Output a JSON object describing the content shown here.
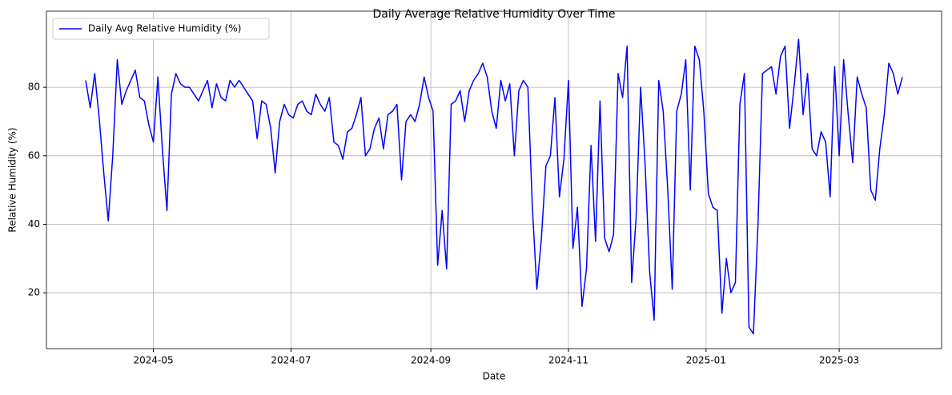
{
  "chart_data": {
    "type": "line",
    "title": "Daily Average Relative Humidity Over Time",
    "x_label": "Date",
    "y_label": "Relative Humidity (%)",
    "x": [
      0,
      2,
      4,
      6,
      8,
      10,
      12,
      14,
      16,
      18,
      20,
      22,
      24,
      26,
      28,
      30,
      32,
      34,
      36,
      38,
      40,
      42,
      44,
      46,
      48,
      50,
      52,
      54,
      56,
      58,
      60,
      62,
      64,
      66,
      68,
      70,
      72,
      74,
      76,
      78,
      80,
      82,
      84,
      86,
      88,
      90,
      92,
      94,
      96,
      98,
      100,
      102,
      104,
      106,
      108,
      110,
      112,
      114,
      116,
      118,
      120,
      122,
      124,
      126,
      128,
      130,
      132,
      134,
      136,
      138,
      140,
      142,
      144,
      146,
      148,
      150,
      152,
      154,
      156,
      158,
      160,
      162,
      164,
      166,
      168,
      170,
      172,
      174,
      176,
      178,
      180,
      182,
      184,
      186,
      188,
      190,
      192,
      194,
      196,
      198,
      200,
      202,
      204,
      206,
      208,
      210,
      212,
      214,
      216,
      218,
      220,
      222,
      224,
      226,
      228,
      230,
      232,
      234,
      236,
      238,
      240,
      242,
      244,
      246,
      248,
      250,
      252,
      254,
      256,
      258,
      260,
      262,
      264,
      266,
      268,
      270,
      272,
      274,
      276,
      278,
      280,
      282,
      284,
      286,
      288,
      290,
      292,
      294,
      296,
      298,
      300,
      302,
      304,
      306,
      308,
      310,
      312,
      314,
      316,
      318,
      320,
      322,
      324,
      326,
      328,
      330,
      332,
      334,
      336,
      338,
      340,
      342,
      344,
      346,
      348,
      350,
      352,
      354,
      356,
      358,
      360,
      362
    ],
    "series": [
      {
        "name": "Daily Avg Relative Humidity (%)",
        "color": "#0000ff",
        "values": [
          82,
          74,
          84,
          71,
          55,
          41,
          60,
          88,
          75,
          79,
          82,
          85,
          77,
          76,
          69,
          64,
          83,
          62,
          44,
          78,
          84,
          81,
          80,
          80,
          78,
          76,
          79,
          82,
          74,
          81,
          77,
          76,
          82,
          80,
          82,
          80,
          78,
          76,
          65,
          76,
          75,
          68,
          55,
          70,
          75,
          72,
          71,
          75,
          76,
          73,
          72,
          78,
          75,
          73,
          77,
          64,
          63,
          59,
          67,
          68,
          72,
          77,
          60,
          62,
          68,
          71,
          62,
          72,
          73,
          75,
          53,
          70,
          72,
          70,
          75,
          83,
          77,
          73,
          28,
          44,
          27,
          75,
          76,
          79,
          70,
          79,
          82,
          84,
          87,
          83,
          73,
          68,
          82,
          76,
          81,
          60,
          79,
          82,
          80,
          45,
          21,
          36,
          57,
          60,
          77,
          48,
          59,
          82,
          33,
          45,
          16,
          27,
          63,
          35,
          76,
          36,
          32,
          37,
          84,
          77,
          92,
          23,
          42,
          80,
          57,
          26,
          12,
          82,
          73,
          50,
          21,
          73,
          78,
          88,
          50,
          92,
          88,
          73,
          49,
          45,
          44,
          14,
          30,
          20,
          23,
          75,
          84,
          10,
          8,
          40,
          84,
          85,
          86,
          78,
          89,
          92,
          68,
          80,
          94,
          72,
          84,
          62,
          60,
          67,
          64,
          48,
          86,
          60,
          88,
          72,
          58,
          83,
          78,
          74,
          50,
          47,
          62,
          72,
          87,
          84,
          78,
          83
        ]
      }
    ],
    "xlim": [
      -17.4,
      379.4
    ],
    "xticks": [
      {
        "value": 30,
        "label": "2024-05"
      },
      {
        "value": 91,
        "label": "2024-07"
      },
      {
        "value": 153,
        "label": "2024-09"
      },
      {
        "value": 214,
        "label": "2024-11"
      },
      {
        "value": 275,
        "label": "2025-01"
      },
      {
        "value": 334,
        "label": "2025-03"
      }
    ],
    "ylim": [
      3.7,
      102.2
    ],
    "yticks": [
      20,
      40,
      60,
      80
    ],
    "grid": true,
    "legend": "upper left"
  }
}
